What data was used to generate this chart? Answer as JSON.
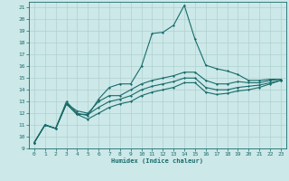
{
  "xlabel": "Humidex (Indice chaleur)",
  "xlim": [
    -0.5,
    23.5
  ],
  "ylim": [
    9,
    21.5
  ],
  "xticks": [
    0,
    1,
    2,
    3,
    4,
    5,
    6,
    7,
    8,
    9,
    10,
    11,
    12,
    13,
    14,
    15,
    16,
    17,
    18,
    19,
    20,
    21,
    22,
    23
  ],
  "yticks": [
    9,
    10,
    11,
    12,
    13,
    14,
    15,
    16,
    17,
    18,
    19,
    20,
    21
  ],
  "bg_color": "#cce8e8",
  "line_color": "#1a6b6b",
  "grid_color": "#b0d0d0",
  "lines": [
    {
      "x": [
        0,
        1,
        2,
        3,
        4,
        5,
        6,
        7,
        8,
        9,
        10,
        11,
        12,
        13,
        14,
        15,
        16,
        17,
        18,
        19,
        20,
        21,
        22,
        23
      ],
      "y": [
        9.5,
        11.0,
        10.7,
        13.0,
        12.0,
        11.8,
        13.2,
        14.2,
        14.5,
        14.5,
        16.0,
        18.8,
        18.9,
        19.5,
        21.2,
        18.3,
        16.1,
        15.8,
        15.6,
        15.3,
        14.8,
        14.8,
        14.9,
        14.9
      ]
    },
    {
      "x": [
        0,
        1,
        2,
        3,
        4,
        5,
        6,
        7,
        8,
        9,
        10,
        11,
        12,
        13,
        14,
        15,
        16,
        17,
        18,
        19,
        20,
        21,
        22,
        23
      ],
      "y": [
        9.5,
        11.0,
        10.7,
        12.8,
        12.2,
        12.0,
        13.0,
        13.5,
        13.5,
        14.0,
        14.5,
        14.8,
        15.0,
        15.2,
        15.5,
        15.5,
        14.8,
        14.5,
        14.5,
        14.7,
        14.6,
        14.6,
        14.8,
        14.9
      ]
    },
    {
      "x": [
        0,
        1,
        2,
        3,
        4,
        5,
        6,
        7,
        8,
        9,
        10,
        11,
        12,
        13,
        14,
        15,
        16,
        17,
        18,
        19,
        20,
        21,
        22,
        23
      ],
      "y": [
        9.5,
        11.0,
        10.7,
        12.8,
        11.9,
        11.9,
        12.5,
        13.0,
        13.2,
        13.5,
        14.0,
        14.3,
        14.5,
        14.7,
        15.0,
        15.0,
        14.2,
        14.0,
        14.0,
        14.2,
        14.3,
        14.4,
        14.6,
        14.8
      ]
    },
    {
      "x": [
        0,
        1,
        2,
        3,
        4,
        5,
        6,
        7,
        8,
        9,
        10,
        11,
        12,
        13,
        14,
        15,
        16,
        17,
        18,
        19,
        20,
        21,
        22,
        23
      ],
      "y": [
        9.5,
        11.0,
        10.7,
        12.8,
        11.9,
        11.5,
        12.0,
        12.5,
        12.8,
        13.0,
        13.5,
        13.8,
        14.0,
        14.2,
        14.6,
        14.6,
        13.8,
        13.6,
        13.7,
        13.9,
        14.0,
        14.2,
        14.5,
        14.8
      ]
    }
  ]
}
